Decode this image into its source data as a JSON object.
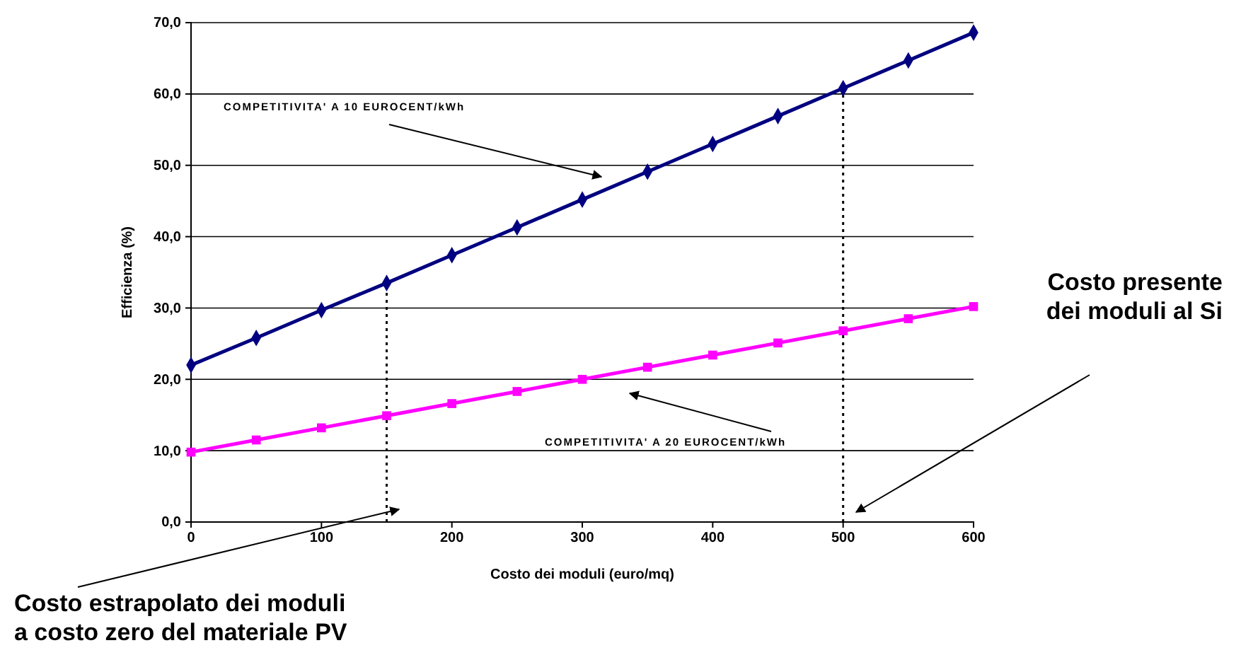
{
  "chart_data": {
    "type": "line",
    "xlabel": "Costo dei moduli (euro/mq)",
    "ylabel": "Efficienza (%)",
    "x": [
      0,
      50,
      100,
      150,
      200,
      250,
      300,
      350,
      400,
      450,
      500,
      550,
      600
    ],
    "series": [
      {
        "color": "#000080",
        "marker": "diamond",
        "values": [
          22.0,
          25.8,
          29.7,
          33.5,
          37.4,
          41.3,
          45.2,
          49.1,
          53.0,
          56.9,
          60.8,
          64.7,
          68.6
        ]
      },
      {
        "color": "#ff00ff",
        "marker": "square",
        "values": [
          9.8,
          11.5,
          13.2,
          14.9,
          16.6,
          18.3,
          20.0,
          21.7,
          23.4,
          25.1,
          26.8,
          28.5,
          30.2
        ]
      }
    ],
    "xlim": [
      0,
      600
    ],
    "xticks": [
      0,
      100,
      200,
      300,
      400,
      500,
      600
    ],
    "ylim": [
      0,
      70
    ],
    "yticks": [
      {
        "value": 0,
        "label": "0,0"
      },
      {
        "value": 10,
        "label": "10,0"
      },
      {
        "value": 20,
        "label": "20,0"
      },
      {
        "value": 30,
        "label": "30,0"
      },
      {
        "value": 40,
        "label": "40,0"
      },
      {
        "value": 50,
        "label": "50,0"
      },
      {
        "value": 60,
        "label": "60,0"
      },
      {
        "value": 70,
        "label": "70,0"
      }
    ],
    "grid": "y",
    "ref_lines": [
      {
        "axis": "x",
        "value": 150,
        "color": "#000000",
        "line_style": "dotted"
      },
      {
        "axis": "x",
        "value": 500,
        "color": "#000000",
        "line_style": "dotted"
      }
    ],
    "annotations": [
      "COMPETITIVITA' A 10 EUROCENT/kWh",
      "COMPETITIVITA' A 20 EUROCENT/kWh",
      "Costo presente\ndei moduli al Si",
      "Costo estrapolato dei moduli\na costo zero del materiale PV"
    ]
  }
}
